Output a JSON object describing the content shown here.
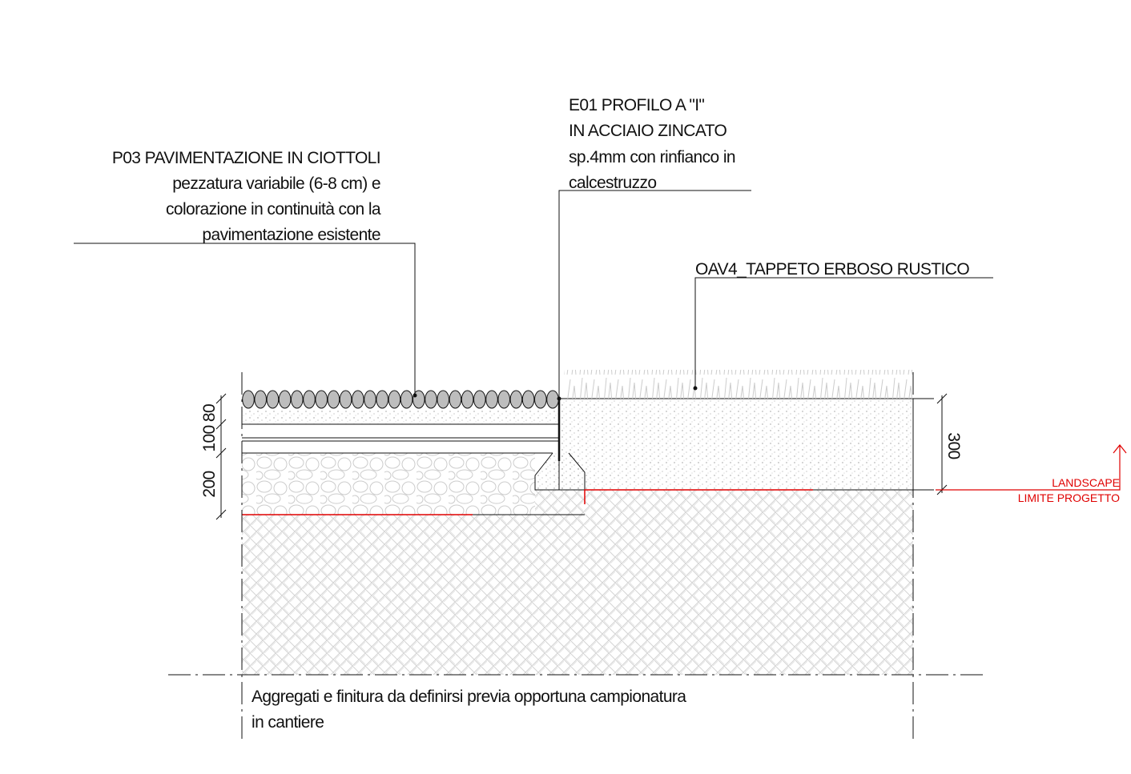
{
  "labels": {
    "p03": {
      "lines": [
        "P03 PAVIMENTAZIONE IN CIOTTOLI",
        "pezzatura variabile (6-8 cm) e",
        "colorazione in continuità con la",
        "pavimentazione esistente"
      ]
    },
    "e01": {
      "lines": [
        "E01 PROFILO A \"I\"",
        "IN ACCIAIO ZINCATO",
        "sp.4mm con rinfianco in",
        "calcestruzzo"
      ]
    },
    "oav4": "OAV4_TAPPETO ERBOSO RUSTICO"
  },
  "dimensions": {
    "d80": 80,
    "d100": 100,
    "d200": 200,
    "d300": 300
  },
  "limit": {
    "landscape": "LANDSCAPE",
    "limite": "LIMITE PROGETTO"
  },
  "note": {
    "lines": [
      "Aggregati e finitura da definirsi previa opportuna campionatura",
      "in cantiere"
    ]
  }
}
